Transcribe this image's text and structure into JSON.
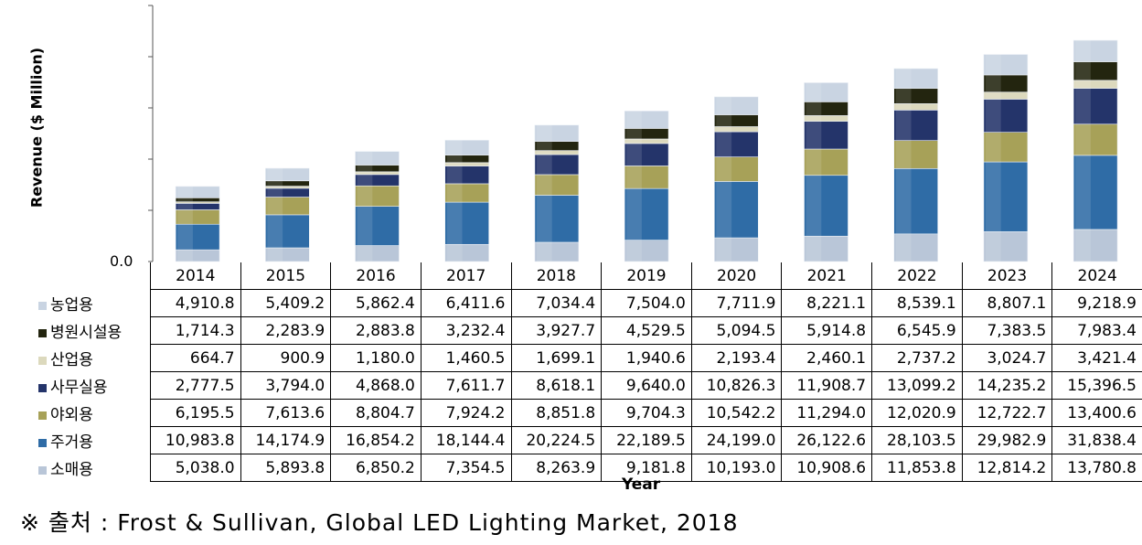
{
  "chart_data": {
    "type": "bar",
    "stacked": true,
    "title": "",
    "xlabel": "Year",
    "ylabel": "Revenue ($ Million)",
    "y_tick_label": "0.0",
    "categories": [
      "2014",
      "2015",
      "2016",
      "2017",
      "2018",
      "2019",
      "2020",
      "2021",
      "2022",
      "2023",
      "2024"
    ],
    "series": [
      {
        "name": "농업용",
        "color": "#c9d4e2",
        "values": [
          "4,910.8",
          "5,409.2",
          "5,862.4",
          "6,411.6",
          "7,034.4",
          "7,504.0",
          "7,711.9",
          "8,221.1",
          "8,539.1",
          "8,807.1",
          "9,218.9"
        ]
      },
      {
        "name": "병원시설용",
        "color": "#23250f",
        "values": [
          "1,714.3",
          "2,283.9",
          "2,883.8",
          "3,232.4",
          "3,927.7",
          "4,529.5",
          "5,094.5",
          "5,914.8",
          "6,545.9",
          "7,383.5",
          "7,983.4"
        ]
      },
      {
        "name": "산업용",
        "color": "#dcd9bd",
        "values": [
          "664.7",
          "900.9",
          "1,180.0",
          "1,460.5",
          "1,699.1",
          "1,940.6",
          "2,193.4",
          "2,460.1",
          "2,737.2",
          "3,024.7",
          "3,421.4"
        ]
      },
      {
        "name": "사무실용",
        "color": "#24346a",
        "values": [
          "2,777.5",
          "3,794.0",
          "4,868.0",
          "7,611.7",
          "8,618.1",
          "9,640.0",
          "10,826.3",
          "11,908.7",
          "13,099.2",
          "14,235.2",
          "15,396.5"
        ]
      },
      {
        "name": "야외용",
        "color": "#a7a158",
        "values": [
          "6,195.5",
          "7,613.6",
          "8,804.7",
          "7,924.2",
          "8,851.8",
          "9,704.3",
          "10,542.2",
          "11,294.0",
          "12,020.9",
          "12,722.7",
          "13,400.6"
        ]
      },
      {
        "name": "주거용",
        "color": "#2f6ca6",
        "values": [
          "10,983.8",
          "14,174.9",
          "16,854.2",
          "18,144.4",
          "20,224.5",
          "22,189.5",
          "24,199.0",
          "26,122.6",
          "28,103.5",
          "29,982.9",
          "31,838.4"
        ]
      },
      {
        "name": "소매용",
        "color": "#b9c6d8",
        "values": [
          "5,038.0",
          "5,893.8",
          "6,850.2",
          "7,354.5",
          "8,263.9",
          "9,181.8",
          "10,193.0",
          "10,908.6",
          "11,853.8",
          "12,814.2",
          "13,780.8"
        ]
      }
    ],
    "ymax": 110000,
    "grid": false,
    "legend": "table-left"
  },
  "source_note": "※ 출처 : Frost & Sullivan, Global LED Lighting Market, 2018"
}
